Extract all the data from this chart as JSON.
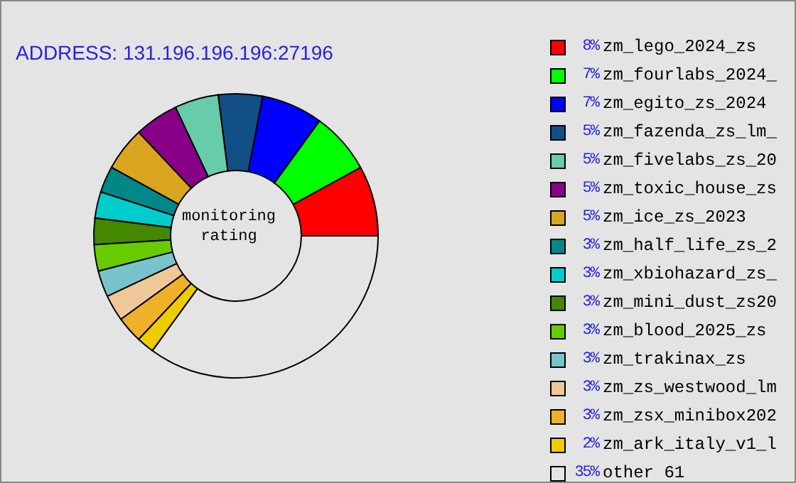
{
  "chart_data": {
    "type": "donut",
    "legend": "right",
    "annotations": [
      "ADDRESS: 131.196.196.196:27196",
      "monitoring rating"
    ],
    "categories": [
      "zm_lego_2024_zs",
      "zm_fourlabs_2024_",
      "zm_egito_zs_2024",
      "zm_fazenda_zs_lm_",
      "zm_fivelabs_zs_20",
      "zm_toxic_house_zs",
      "zm_ice_zs_2023",
      "zm_half_life_zs_2",
      "zm_xbiohazard_zs_",
      "zm_mini_dust_zs20",
      "zm_blood_2025_zs",
      "zm_trakinax_zs",
      "zm_zs_westwood_lm",
      "zm_zsx_minibox202",
      "zm_ark_italy_v1_l",
      "other 61"
    ],
    "values": [
      8,
      7,
      7,
      5,
      5,
      5,
      5,
      3,
      3,
      3,
      3,
      3,
      3,
      3,
      2,
      35
    ],
    "value_labels": [
      "8%",
      "7%",
      "7%",
      "5%",
      "5%",
      "5%",
      "5%",
      "3%",
      "3%",
      "3%",
      "3%",
      "3%",
      "3%",
      "3%",
      "2%",
      "35%"
    ],
    "colors": [
      "#ff0000",
      "#00ff00",
      "#0000ff",
      "#124f87",
      "#66ccaa",
      "#880088",
      "#daa520",
      "#008888",
      "#00cccc",
      "#448800",
      "#66cc00",
      "#77c4cc",
      "#eec898",
      "#efb12a",
      "#eecc00",
      "#e4e4e4"
    ]
  }
}
